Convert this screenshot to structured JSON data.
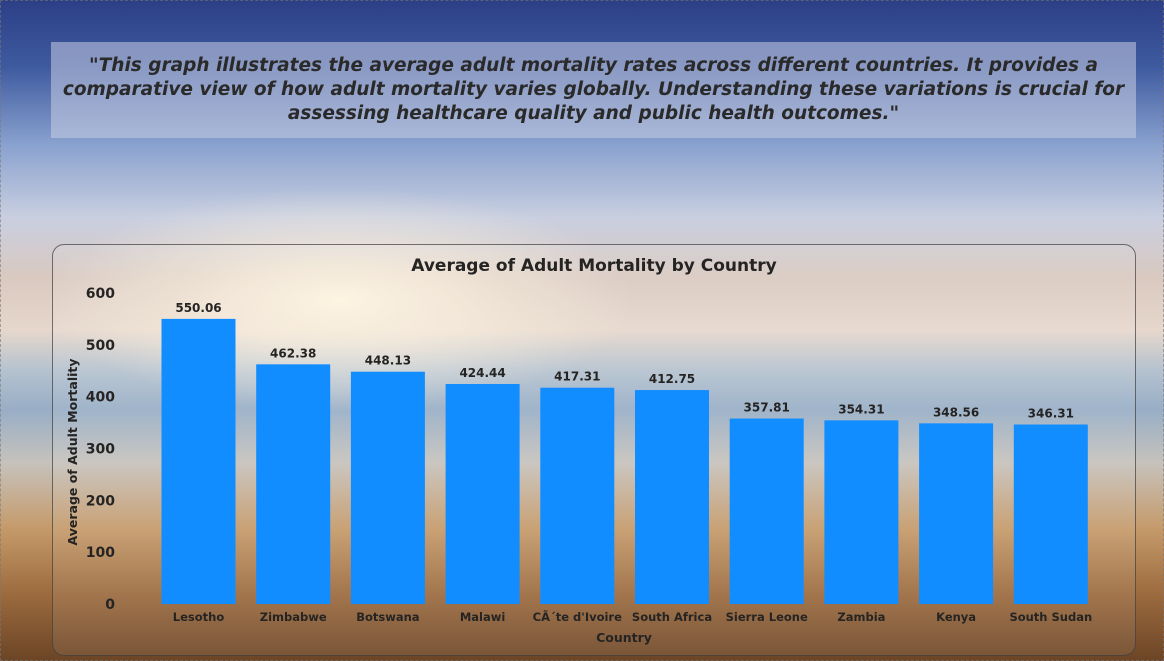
{
  "description": "\"This graph illustrates the average adult mortality rates across different countries. It provides a comparative view of how adult mortality varies globally. Understanding these variations is crucial for assessing healthcare quality and public health outcomes.\"",
  "colors": {
    "bar": "#118DFF",
    "text": "#252423"
  },
  "chart_data": {
    "type": "bar",
    "title": "Average of Adult Mortality by Country",
    "xlabel": "Country",
    "ylabel": "Average of Adult Mortality",
    "ylim": [
      0,
      600
    ],
    "yticks": [
      0,
      100,
      200,
      300,
      400,
      500,
      600
    ],
    "grid": false,
    "categories": [
      "Lesotho",
      "Zimbabwe",
      "Botswana",
      "Malawi",
      "CÃ´te d'Ivoire",
      "South Africa",
      "Sierra Leone",
      "Zambia",
      "Kenya",
      "South Sudan"
    ],
    "values": [
      550.06,
      462.38,
      448.13,
      424.44,
      417.31,
      412.75,
      357.81,
      354.31,
      348.56,
      346.31
    ],
    "data_labels": [
      "550.06",
      "462.38",
      "448.13",
      "424.44",
      "417.31",
      "412.75",
      "357.81",
      "354.31",
      "348.56",
      "346.31"
    ]
  }
}
